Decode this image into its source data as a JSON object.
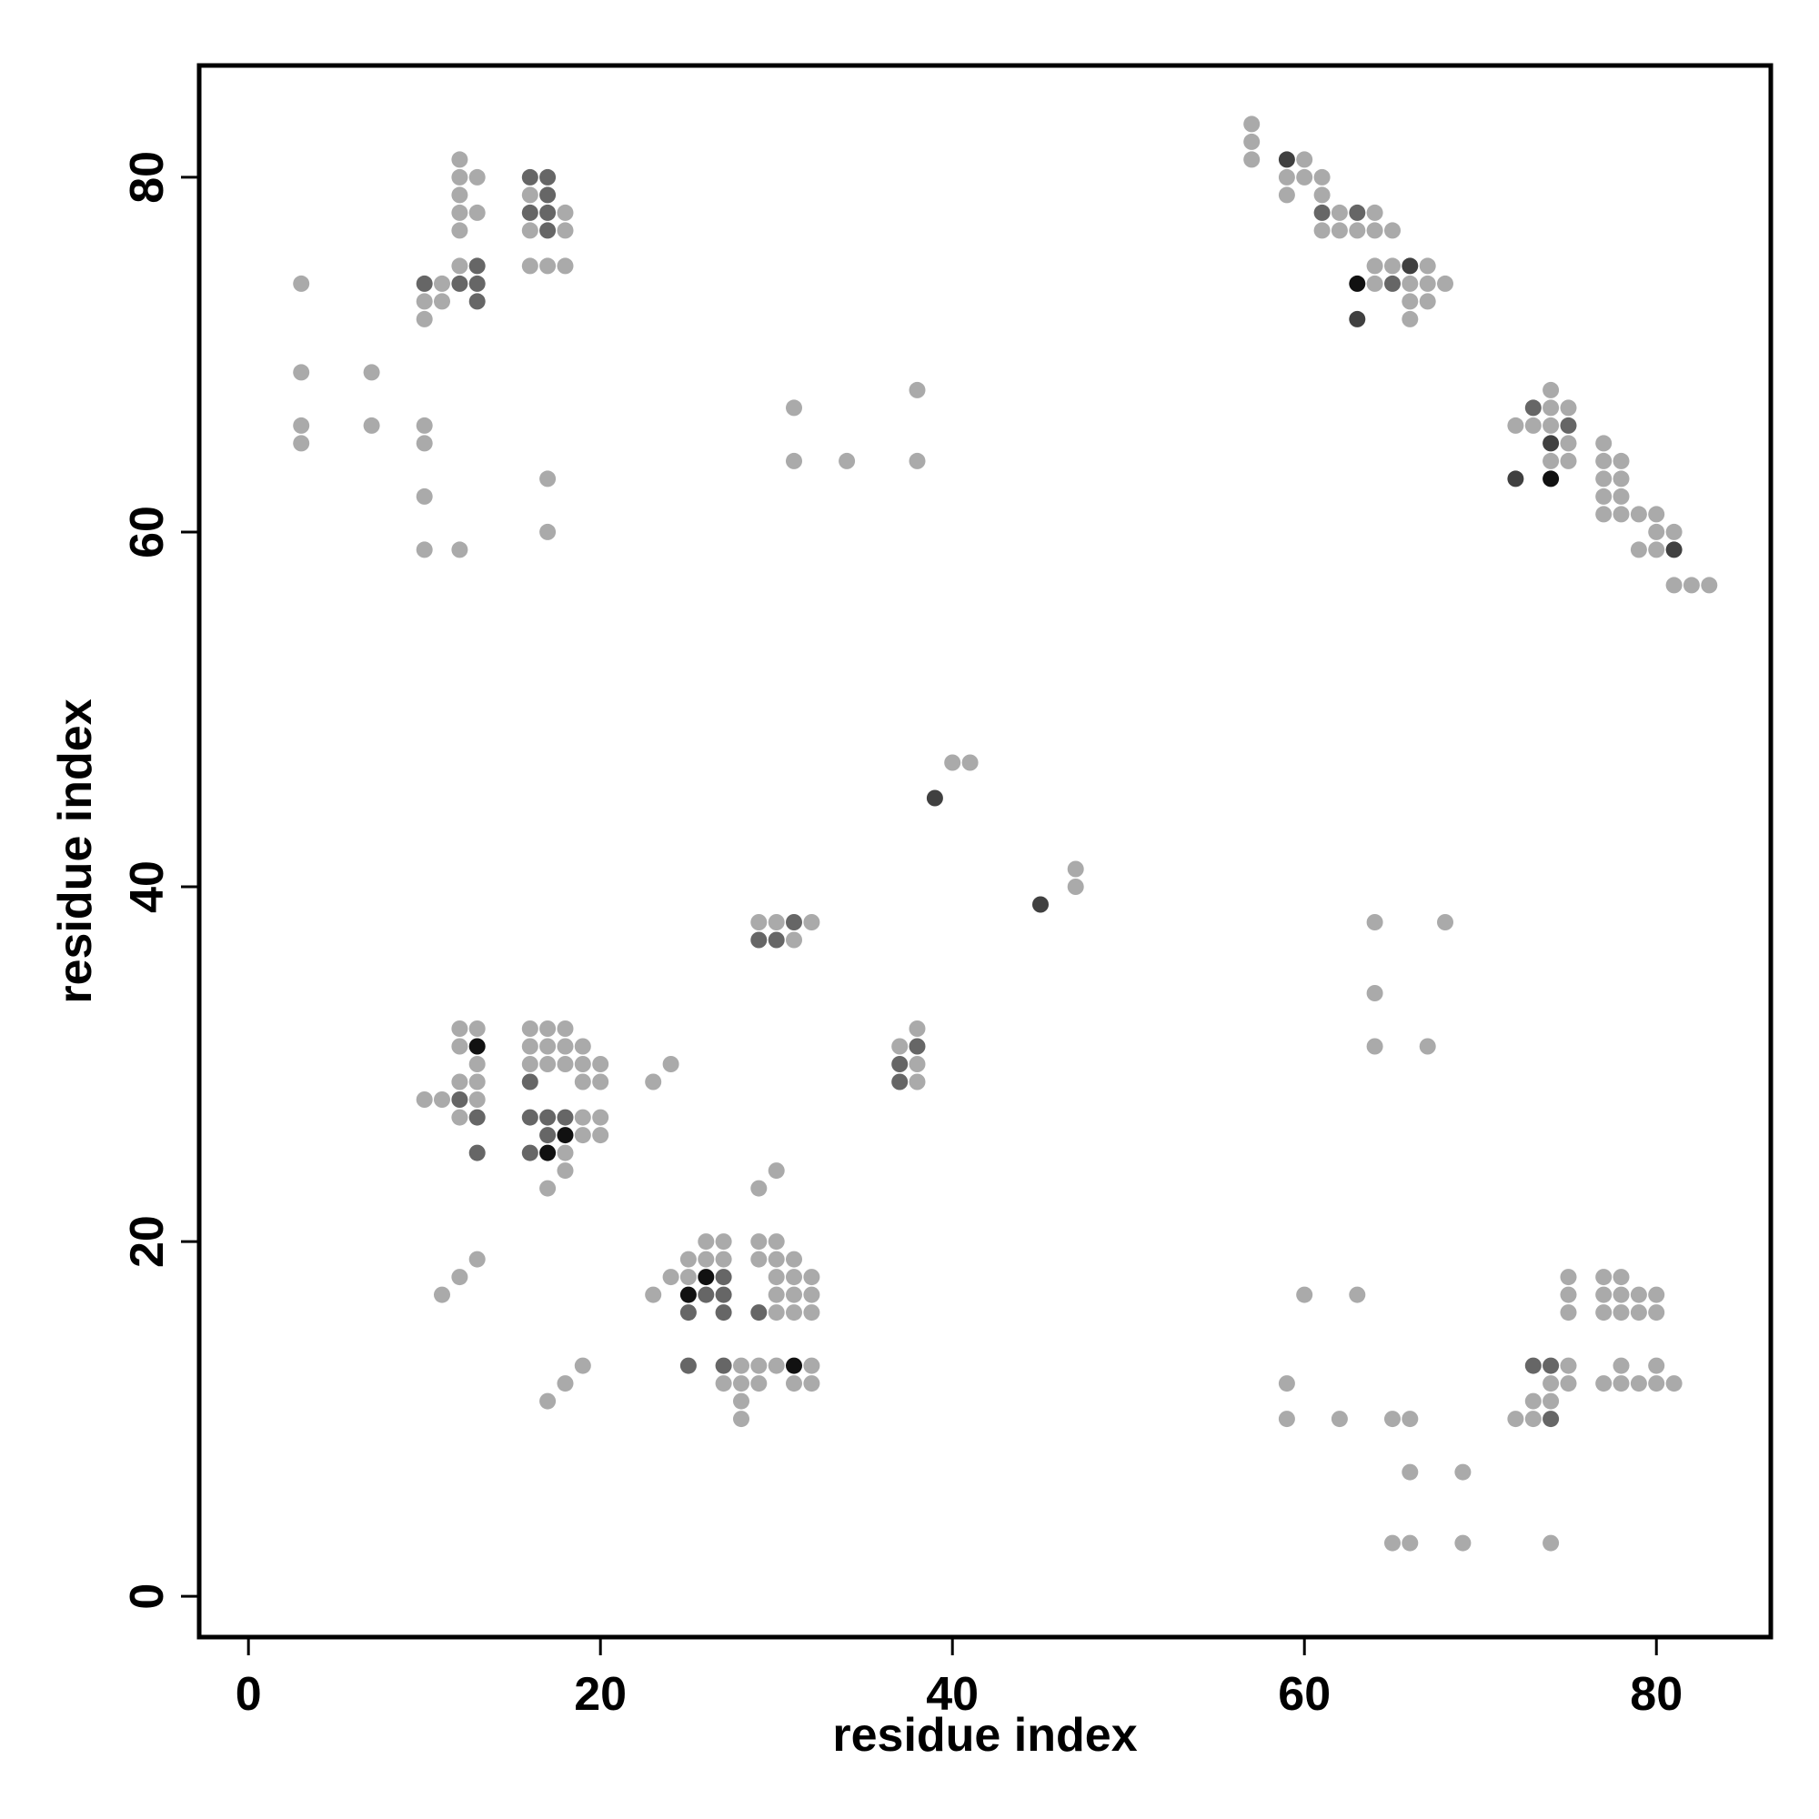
{
  "chart_data": {
    "type": "scatter",
    "title": "",
    "xlabel": "residue index",
    "ylabel": "residue index",
    "xlim": [
      -2.8,
      86.5
    ],
    "ylim": [
      -2.3,
      86.3
    ],
    "xticks": [
      0,
      20,
      40,
      60,
      80
    ],
    "yticks": [
      0,
      20,
      40,
      60,
      80
    ],
    "grid": false,
    "legend": "none",
    "value_encoding": "point shade: 1 = light gray, 2 = medium gray, 3 = dark gray, 4 = black",
    "colors": {
      "1": "#aaaaaa",
      "2": "#666666",
      "3": "#404040",
      "4": "#111111"
    },
    "points": [
      [
        3,
        74,
        1
      ],
      [
        3,
        69,
        1
      ],
      [
        3,
        66,
        1
      ],
      [
        3,
        65,
        1
      ],
      [
        7,
        69,
        1
      ],
      [
        7,
        66,
        1
      ],
      [
        10,
        74,
        2
      ],
      [
        10,
        73,
        1
      ],
      [
        10,
        72,
        1
      ],
      [
        11,
        74,
        1
      ],
      [
        11,
        73,
        1
      ],
      [
        12,
        81,
        1
      ],
      [
        12,
        80,
        1
      ],
      [
        12,
        79,
        1
      ],
      [
        12,
        78,
        1
      ],
      [
        12,
        77,
        1
      ],
      [
        12,
        75,
        1
      ],
      [
        12,
        74,
        2
      ],
      [
        13,
        80,
        1
      ],
      [
        13,
        78,
        1
      ],
      [
        13,
        75,
        2
      ],
      [
        13,
        74,
        2
      ],
      [
        13,
        73,
        2
      ],
      [
        16,
        80,
        2
      ],
      [
        16,
        79,
        1
      ],
      [
        16,
        78,
        2
      ],
      [
        16,
        77,
        1
      ],
      [
        16,
        75,
        1
      ],
      [
        17,
        80,
        2
      ],
      [
        17,
        79,
        2
      ],
      [
        17,
        78,
        2
      ],
      [
        17,
        77,
        2
      ],
      [
        17,
        75,
        1
      ],
      [
        18,
        78,
        1
      ],
      [
        18,
        77,
        1
      ],
      [
        18,
        75,
        1
      ],
      [
        10,
        66,
        1
      ],
      [
        10,
        65,
        1
      ],
      [
        10,
        62,
        1
      ],
      [
        10,
        59,
        1
      ],
      [
        12,
        59,
        1
      ],
      [
        17,
        63,
        1
      ],
      [
        17,
        60,
        1
      ],
      [
        31,
        67,
        1
      ],
      [
        31,
        64,
        1
      ],
      [
        34,
        64,
        1
      ],
      [
        38,
        68,
        1
      ],
      [
        38,
        64,
        1
      ],
      [
        57,
        83,
        1
      ],
      [
        57,
        82,
        1
      ],
      [
        57,
        81,
        1
      ],
      [
        59,
        81,
        3
      ],
      [
        59,
        80,
        1
      ],
      [
        59,
        79,
        1
      ],
      [
        60,
        81,
        1
      ],
      [
        60,
        80,
        1
      ],
      [
        61,
        80,
        1
      ],
      [
        61,
        79,
        1
      ],
      [
        61,
        78,
        2
      ],
      [
        61,
        77,
        1
      ],
      [
        62,
        78,
        1
      ],
      [
        62,
        77,
        1
      ],
      [
        63,
        78,
        2
      ],
      [
        63,
        77,
        1
      ],
      [
        64,
        78,
        1
      ],
      [
        64,
        77,
        1
      ],
      [
        65,
        77,
        1
      ],
      [
        63,
        74,
        4
      ],
      [
        63,
        72,
        3
      ],
      [
        64,
        75,
        1
      ],
      [
        64,
        74,
        1
      ],
      [
        65,
        75,
        1
      ],
      [
        65,
        74,
        2
      ],
      [
        66,
        75,
        3
      ],
      [
        66,
        74,
        1
      ],
      [
        66,
        73,
        1
      ],
      [
        66,
        72,
        1
      ],
      [
        67,
        75,
        1
      ],
      [
        67,
        74,
        1
      ],
      [
        67,
        73,
        1
      ],
      [
        68,
        74,
        1
      ],
      [
        72,
        66,
        1
      ],
      [
        72,
        63,
        3
      ],
      [
        73,
        67,
        2
      ],
      [
        73,
        66,
        1
      ],
      [
        74,
        68,
        1
      ],
      [
        74,
        67,
        1
      ],
      [
        74,
        66,
        1
      ],
      [
        74,
        65,
        3
      ],
      [
        74,
        64,
        1
      ],
      [
        74,
        63,
        4
      ],
      [
        75,
        67,
        1
      ],
      [
        75,
        66,
        2
      ],
      [
        75,
        65,
        1
      ],
      [
        75,
        64,
        1
      ],
      [
        77,
        65,
        1
      ],
      [
        77,
        64,
        1
      ],
      [
        77,
        63,
        1
      ],
      [
        77,
        62,
        1
      ],
      [
        77,
        61,
        1
      ],
      [
        78,
        64,
        1
      ],
      [
        78,
        63,
        1
      ],
      [
        78,
        62,
        1
      ],
      [
        78,
        61,
        1
      ],
      [
        79,
        61,
        1
      ],
      [
        79,
        59,
        1
      ],
      [
        80,
        61,
        1
      ],
      [
        80,
        60,
        1
      ],
      [
        80,
        59,
        1
      ],
      [
        81,
        60,
        1
      ],
      [
        81,
        59,
        3
      ],
      [
        82,
        57,
        1
      ],
      [
        83,
        57,
        1
      ],
      [
        81,
        57,
        1
      ],
      [
        40,
        47,
        1
      ],
      [
        41,
        47,
        1
      ],
      [
        39,
        45,
        3
      ],
      [
        45,
        39,
        3
      ],
      [
        47,
        41,
        1
      ],
      [
        47,
        40,
        1
      ],
      [
        29,
        38,
        1
      ],
      [
        29,
        37,
        2
      ],
      [
        30,
        38,
        1
      ],
      [
        30,
        37,
        2
      ],
      [
        31,
        38,
        2
      ],
      [
        31,
        37,
        1
      ],
      [
        32,
        38,
        1
      ],
      [
        37,
        31,
        1
      ],
      [
        37,
        30,
        2
      ],
      [
        37,
        29,
        2
      ],
      [
        38,
        32,
        1
      ],
      [
        38,
        31,
        2
      ],
      [
        38,
        30,
        1
      ],
      [
        38,
        29,
        1
      ],
      [
        10,
        28,
        1
      ],
      [
        11,
        28,
        1
      ],
      [
        12,
        32,
        1
      ],
      [
        12,
        31,
        1
      ],
      [
        12,
        29,
        1
      ],
      [
        12,
        28,
        2
      ],
      [
        12,
        27,
        1
      ],
      [
        13,
        32,
        1
      ],
      [
        13,
        31,
        4
      ],
      [
        13,
        30,
        1
      ],
      [
        13,
        29,
        1
      ],
      [
        13,
        28,
        1
      ],
      [
        13,
        27,
        2
      ],
      [
        13,
        25,
        2
      ],
      [
        16,
        32,
        1
      ],
      [
        16,
        31,
        1
      ],
      [
        16,
        30,
        1
      ],
      [
        16,
        29,
        2
      ],
      [
        16,
        27,
        2
      ],
      [
        16,
        25,
        2
      ],
      [
        17,
        32,
        1
      ],
      [
        17,
        31,
        1
      ],
      [
        17,
        30,
        1
      ],
      [
        17,
        27,
        2
      ],
      [
        17,
        26,
        2
      ],
      [
        17,
        25,
        4
      ],
      [
        17,
        23,
        1
      ],
      [
        18,
        32,
        1
      ],
      [
        18,
        31,
        1
      ],
      [
        18,
        30,
        1
      ],
      [
        18,
        27,
        2
      ],
      [
        18,
        26,
        4
      ],
      [
        18,
        25,
        1
      ],
      [
        18,
        24,
        1
      ],
      [
        19,
        31,
        1
      ],
      [
        19,
        30,
        1
      ],
      [
        19,
        29,
        1
      ],
      [
        19,
        27,
        1
      ],
      [
        19,
        26,
        1
      ],
      [
        20,
        30,
        1
      ],
      [
        20,
        29,
        1
      ],
      [
        20,
        27,
        1
      ],
      [
        20,
        26,
        1
      ],
      [
        23,
        29,
        1
      ],
      [
        24,
        30,
        1
      ],
      [
        29,
        23,
        1
      ],
      [
        30,
        24,
        1
      ],
      [
        11,
        17,
        1
      ],
      [
        12,
        18,
        1
      ],
      [
        13,
        19,
        1
      ],
      [
        17,
        11,
        1
      ],
      [
        18,
        12,
        1
      ],
      [
        19,
        13,
        1
      ],
      [
        23,
        17,
        1
      ],
      [
        24,
        18,
        1
      ],
      [
        25,
        19,
        1
      ],
      [
        25,
        18,
        1
      ],
      [
        25,
        17,
        4
      ],
      [
        25,
        16,
        2
      ],
      [
        25,
        13,
        2
      ],
      [
        26,
        20,
        1
      ],
      [
        26,
        19,
        1
      ],
      [
        26,
        18,
        4
      ],
      [
        26,
        17,
        2
      ],
      [
        27,
        20,
        1
      ],
      [
        27,
        19,
        1
      ],
      [
        27,
        18,
        2
      ],
      [
        27,
        17,
        2
      ],
      [
        27,
        16,
        2
      ],
      [
        27,
        13,
        2
      ],
      [
        27,
        12,
        1
      ],
      [
        28,
        13,
        1
      ],
      [
        28,
        12,
        1
      ],
      [
        28,
        11,
        1
      ],
      [
        28,
        10,
        1
      ],
      [
        29,
        20,
        1
      ],
      [
        29,
        19,
        1
      ],
      [
        29,
        16,
        2
      ],
      [
        29,
        13,
        1
      ],
      [
        29,
        12,
        1
      ],
      [
        30,
        20,
        1
      ],
      [
        30,
        19,
        1
      ],
      [
        30,
        18,
        1
      ],
      [
        30,
        17,
        1
      ],
      [
        30,
        16,
        1
      ],
      [
        30,
        13,
        1
      ],
      [
        31,
        19,
        1
      ],
      [
        31,
        18,
        1
      ],
      [
        31,
        17,
        1
      ],
      [
        31,
        16,
        1
      ],
      [
        31,
        13,
        4
      ],
      [
        31,
        12,
        1
      ],
      [
        32,
        18,
        1
      ],
      [
        32,
        17,
        1
      ],
      [
        32,
        16,
        1
      ],
      [
        32,
        13,
        1
      ],
      [
        32,
        12,
        1
      ],
      [
        64,
        38,
        1
      ],
      [
        68,
        38,
        1
      ],
      [
        64,
        34,
        1
      ],
      [
        64,
        31,
        1
      ],
      [
        67,
        31,
        1
      ],
      [
        59,
        12,
        1
      ],
      [
        59,
        10,
        1
      ],
      [
        60,
        17,
        1
      ],
      [
        62,
        10,
        1
      ],
      [
        63,
        17,
        1
      ],
      [
        65,
        10,
        1
      ],
      [
        66,
        10,
        1
      ],
      [
        66,
        7,
        1
      ],
      [
        69,
        7,
        1
      ],
      [
        65,
        3,
        1
      ],
      [
        66,
        3,
        1
      ],
      [
        69,
        3,
        1
      ],
      [
        74,
        3,
        1
      ],
      [
        72,
        10,
        1
      ],
      [
        73,
        13,
        2
      ],
      [
        73,
        11,
        1
      ],
      [
        73,
        10,
        1
      ],
      [
        74,
        13,
        2
      ],
      [
        74,
        12,
        1
      ],
      [
        74,
        11,
        1
      ],
      [
        74,
        10,
        2
      ],
      [
        75,
        18,
        1
      ],
      [
        75,
        17,
        1
      ],
      [
        75,
        16,
        1
      ],
      [
        75,
        13,
        1
      ],
      [
        75,
        12,
        1
      ],
      [
        77,
        18,
        1
      ],
      [
        77,
        17,
        1
      ],
      [
        77,
        16,
        1
      ],
      [
        77,
        12,
        1
      ],
      [
        78,
        18,
        1
      ],
      [
        78,
        17,
        1
      ],
      [
        78,
        16,
        1
      ],
      [
        78,
        13,
        1
      ],
      [
        78,
        12,
        1
      ],
      [
        79,
        17,
        1
      ],
      [
        79,
        16,
        1
      ],
      [
        79,
        12,
        1
      ],
      [
        80,
        17,
        1
      ],
      [
        80,
        16,
        1
      ],
      [
        80,
        13,
        1
      ],
      [
        80,
        12,
        1
      ],
      [
        81,
        12,
        1
      ]
    ]
  }
}
